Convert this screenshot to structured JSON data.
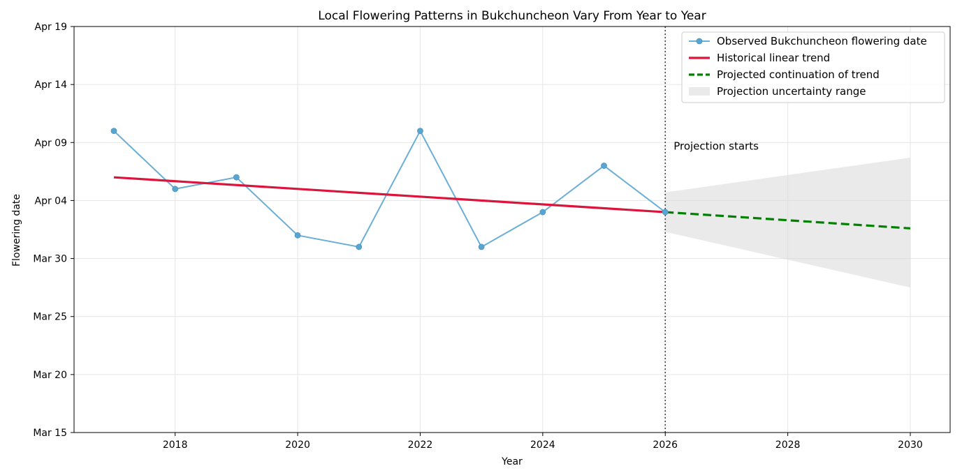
{
  "chart_data": {
    "type": "line",
    "title": "Local Flowering Patterns in Bukchuncheon Vary From Year to Year",
    "xlabel": "Year",
    "ylabel": "Flowering date",
    "xlim": [
      2016.35,
      2030.65
    ],
    "ylim": [
      "2021-03-15",
      "2021-04-19"
    ],
    "x_ticks": [
      2018,
      2020,
      2022,
      2024,
      2026,
      2028,
      2030
    ],
    "y_ticks": [
      "Mar 15",
      "Mar 20",
      "Mar 25",
      "Mar 30",
      "Apr 04",
      "Apr 09",
      "Apr 14",
      "Apr 19"
    ],
    "grid": true,
    "legend_position": "top-right",
    "colors": {
      "observed": "#6baed6",
      "trend": "#dc143c",
      "projection": "#008000",
      "uncertainty": "#d9d9d9",
      "divider": "#444444"
    },
    "series": [
      {
        "name": "Observed Bukchuncheon flowering date",
        "style": "line-with-markers",
        "x": [
          2017,
          2018,
          2019,
          2020,
          2021,
          2022,
          2023,
          2024,
          2025,
          2026
        ],
        "y": [
          "2021-04-10",
          "2021-04-05",
          "2021-04-06",
          "2021-04-01",
          "2021-03-31",
          "2021-04-10",
          "2021-03-31",
          "2021-04-03",
          "2021-04-07",
          "2021-04-03"
        ]
      },
      {
        "name": "Historical linear trend",
        "style": "solid",
        "x": [
          2017,
          2026
        ],
        "y": [
          "2021-04-06",
          "2021-04-03"
        ]
      },
      {
        "name": "Projected continuation of trend",
        "style": "dashed",
        "x": [
          2026,
          2030
        ],
        "y": [
          "2021-04-03",
          "2021-04-01.6"
        ]
      },
      {
        "name": "Projection uncertainty range",
        "style": "band",
        "x": [
          2026,
          2030
        ],
        "lower": [
          "2021-04-01.3",
          "2021-03-27.5"
        ],
        "upper": [
          "2021-04-04.7",
          "2021-04-07.7"
        ]
      }
    ],
    "annotations": [
      {
        "text": "Projection starts",
        "x": 2026,
        "y": "2021-04-08.4"
      }
    ],
    "divider_x": 2026
  }
}
